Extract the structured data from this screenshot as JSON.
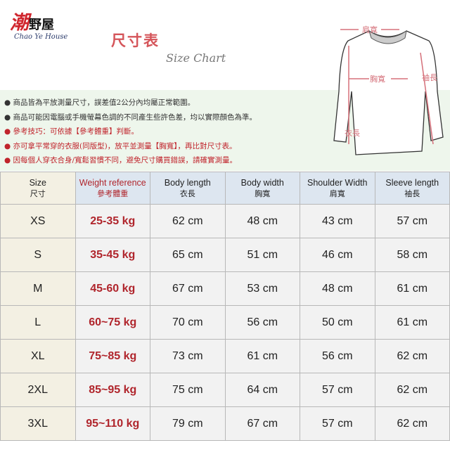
{
  "logo": {
    "mark": "潮",
    "name": "野屋",
    "subtitle": "Chao Ye House"
  },
  "title": {
    "cn": "尺寸表",
    "en": "Size Chart"
  },
  "diagram": {
    "shoulder": "肩寬",
    "chest": "胸寬",
    "body_length": "衣長",
    "sleeve": "袖長",
    "accent": "#d5707a"
  },
  "notes": [
    {
      "text": "商品皆為平放測量尺寸，誤差值2公分內均屬正常範圍。",
      "color": "dark"
    },
    {
      "text": "商品可能因電腦或手機螢幕色調的不同產生些許色差，均以實際顏色為準。",
      "color": "dark"
    },
    {
      "text": "參考技巧：可依據【參考體重】判斷。",
      "color": "red"
    },
    {
      "text": "亦可拿平常穿的衣服(同版型)，放平並測量【胸寬】，再比對尺寸表。",
      "color": "red"
    },
    {
      "text": "因每個人穿衣合身/寬鬆習慣不同，避免尺寸購買錯誤，請確實測量。",
      "color": "red"
    }
  ],
  "table": {
    "headers": [
      {
        "en": "Size",
        "cn": "尺寸"
      },
      {
        "en": "Weight reference",
        "cn": "參考體重"
      },
      {
        "en": "Body length",
        "cn": "衣長"
      },
      {
        "en": "Body width",
        "cn": "胸寬"
      },
      {
        "en": "Shoulder Width",
        "cn": "肩寬"
      },
      {
        "en": "Sleeve length",
        "cn": "袖長"
      }
    ],
    "rows": [
      [
        "XS",
        "25-35 kg",
        "62 cm",
        "48 cm",
        "43 cm",
        "57 cm"
      ],
      [
        "S",
        "35-45 kg",
        "65 cm",
        "51 cm",
        "46 cm",
        "58 cm"
      ],
      [
        "M",
        "45-60 kg",
        "67 cm",
        "53 cm",
        "48 cm",
        "61 cm"
      ],
      [
        "L",
        "60~75 kg",
        "70 cm",
        "56 cm",
        "50 cm",
        "61 cm"
      ],
      [
        "XL",
        "75~85 kg",
        "73 cm",
        "61 cm",
        "56 cm",
        "62 cm"
      ],
      [
        "2XL",
        "85~95 kg",
        "75 cm",
        "64 cm",
        "57 cm",
        "62 cm"
      ],
      [
        "3XL",
        "95~110 kg",
        "79 cm",
        "67 cm",
        "57 cm",
        "62 cm"
      ]
    ]
  }
}
